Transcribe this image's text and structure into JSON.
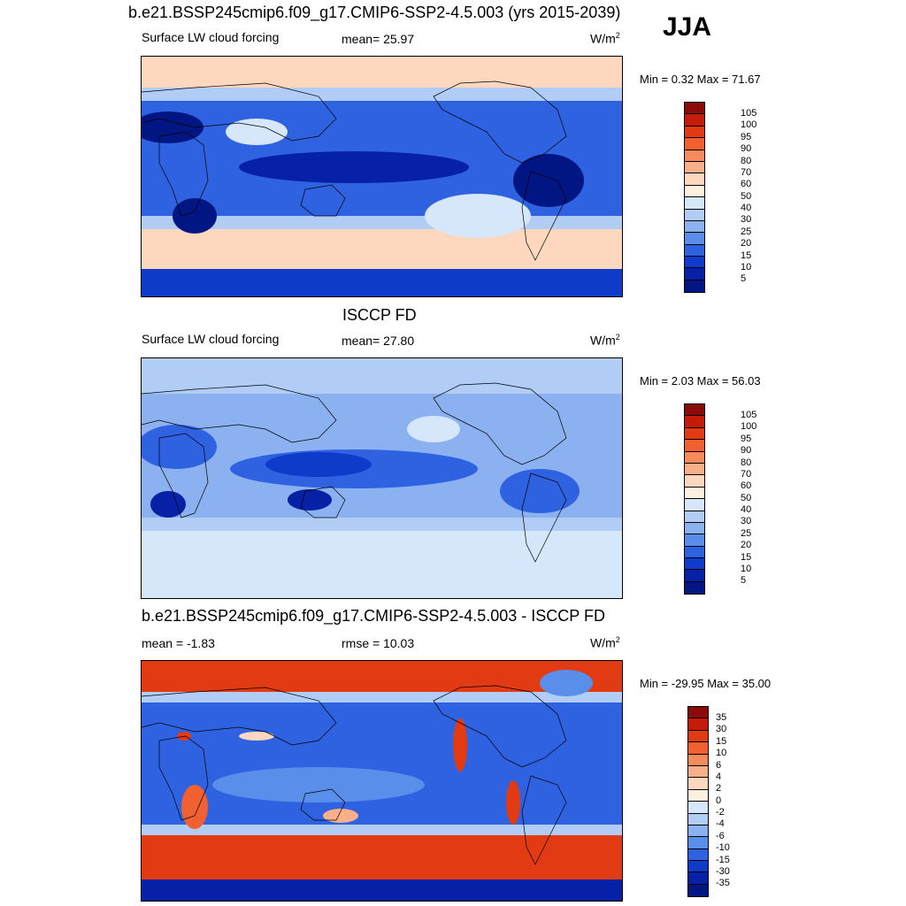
{
  "season": "JJA",
  "panels": [
    {
      "title": "b.e21.BSSP245cmip6.f09_g17.CMIP6-SSP2-4.5.003 (yrs 2015-2039)",
      "left_label": "Surface LW cloud forcing",
      "center_label": "mean=  25.97",
      "units_base": "W/m",
      "units_exp": "2",
      "minmax": "Min =   0.32 Max =  71.67",
      "colorbar_labels": [
        "105",
        "100",
        "95",
        "90",
        "80",
        "70",
        "60",
        "50",
        "40",
        "30",
        "25",
        "20",
        "15",
        "10",
        "5"
      ]
    },
    {
      "title": "ISCCP FD",
      "left_label": "Surface LW cloud forcing",
      "center_label": "mean=  27.80",
      "units_base": "W/m",
      "units_exp": "2",
      "minmax": "Min =   2.03 Max =  56.03",
      "colorbar_labels": [
        "105",
        "100",
        "95",
        "90",
        "80",
        "70",
        "60",
        "50",
        "40",
        "30",
        "25",
        "20",
        "15",
        "10",
        "5"
      ]
    },
    {
      "title": "b.e21.BSSP245cmip6.f09_g17.CMIP6-SSP2-4.5.003 - ISCCP FD",
      "left_label": "mean =  -1.83",
      "center_label": "rmse =  10.03",
      "units_base": "W/m",
      "units_exp": "2",
      "minmax": "Min = -29.95 Max =  35.00",
      "colorbar_labels": [
        "35",
        "30",
        "15",
        "10",
        "6",
        "4",
        "2",
        "0",
        "-2",
        "-4",
        "-6",
        "-10",
        "-15",
        "-30",
        "-35"
      ]
    }
  ],
  "colorbar_colors": [
    "#8b0a0a",
    "#c41c08",
    "#e23a12",
    "#f06030",
    "#f58a5a",
    "#f9b08a",
    "#fdd7be",
    "#fff0e0",
    "#d6e6fb",
    "#b1cdf6",
    "#8cb1f0",
    "#5a8eeb",
    "#2f62e0",
    "#0f3bcb",
    "#0620a6",
    "#011583"
  ]
}
